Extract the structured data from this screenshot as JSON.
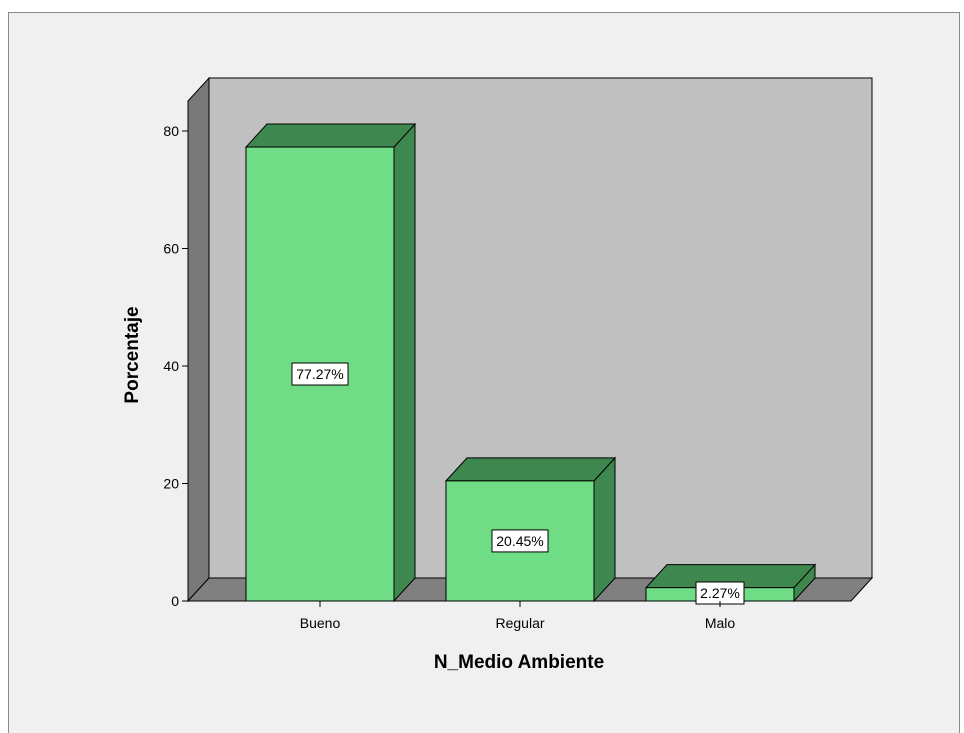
{
  "chart_data": {
    "type": "bar",
    "categories": [
      "Bueno",
      "Regular",
      "Malo"
    ],
    "values": [
      77.27,
      20.45,
      2.27
    ],
    "data_labels": [
      "77.27%",
      "20.45%",
      "2.27%"
    ],
    "xlabel": "N_Medio Ambiente",
    "ylabel": "Porcentaje",
    "ylim": [
      0,
      80
    ],
    "yticks": [
      "0",
      "20",
      "40",
      "60",
      "80"
    ],
    "grid": false,
    "colors": {
      "bar_front": "#6fdd86",
      "bar_top": "#3e8850",
      "bar_side": "#3e8850",
      "back_wall": "#c0c0c0",
      "side_wall": "#787878",
      "floor": "#808080",
      "outline": "#000000"
    }
  }
}
